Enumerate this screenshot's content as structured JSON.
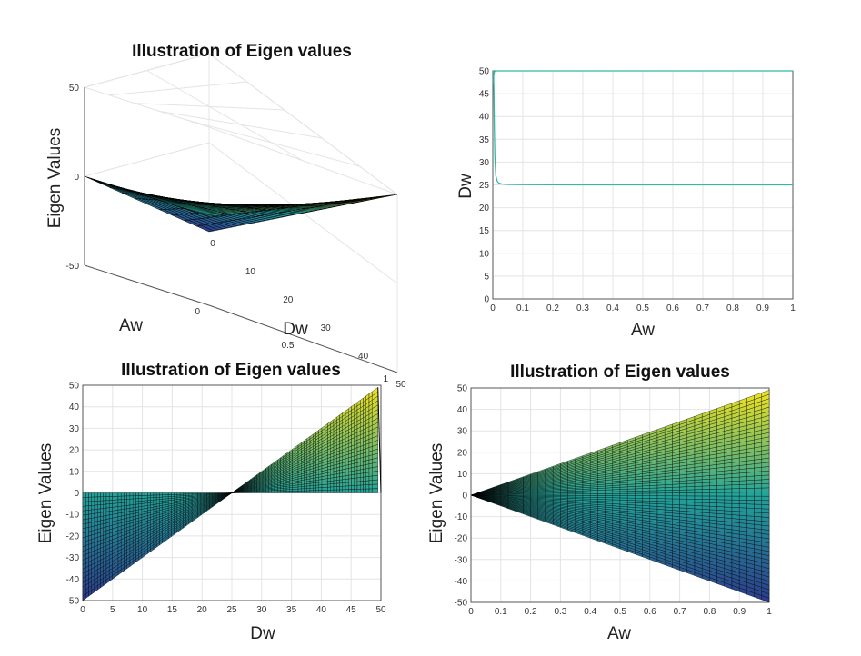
{
  "colors": {
    "surface_low": "#2b3a8c",
    "surface_mid": "#22a39a",
    "surface_high": "#f5e41e",
    "contour": "#34b8a6",
    "grid": "#e4e4e4",
    "axes": "#555555",
    "mesh": "#000000"
  },
  "chart_data": [
    {
      "type": "surface3d",
      "title": "Illustration of Eigen values",
      "xlabel": "Aw",
      "ylabel": "Dw",
      "zlabel": "Eigen Values",
      "xlim": [
        0,
        1
      ],
      "ylim": [
        0,
        50
      ],
      "zlim": [
        -50,
        50
      ],
      "x_ticks": [
        "0",
        "0.5",
        "1"
      ],
      "y_ticks": [
        "0",
        "10",
        "20",
        "30",
        "40",
        "50"
      ],
      "z_ticks": [
        "-50",
        "0",
        "50"
      ],
      "z_function": "Aw * (2*Dw - 50)",
      "grid": true
    },
    {
      "type": "line",
      "title": "",
      "xlabel": "Aw",
      "ylabel": "Dw",
      "xlim": [
        0,
        1
      ],
      "ylim": [
        0,
        50
      ],
      "x_ticks": [
        "0",
        "0.1",
        "0.2",
        "0.3",
        "0.4",
        "0.5",
        "0.6",
        "0.7",
        "0.8",
        "0.9",
        "1"
      ],
      "y_ticks": [
        "0",
        "5",
        "10",
        "15",
        "20",
        "25",
        "30",
        "35",
        "40",
        "45",
        "50"
      ],
      "series": [
        {
          "x": [
            0.002,
            0.003,
            0.004,
            0.005,
            0.007,
            0.01,
            0.015,
            0.02,
            0.03,
            0.05,
            0.1,
            0.2,
            0.4,
            0.6,
            0.8,
            1.0
          ],
          "y": [
            50,
            48,
            44,
            38,
            31,
            27,
            25.8,
            25.4,
            25.2,
            25.1,
            25.05,
            25.02,
            25.0,
            25.0,
            25.0,
            25.0
          ]
        },
        {
          "x": [
            0.002,
            0.003,
            0.005,
            0.01,
            0.1,
            0.5,
            1.0
          ],
          "y": [
            47,
            49,
            49.8,
            50,
            50,
            50,
            50
          ]
        }
      ],
      "grid": true
    },
    {
      "type": "surface-side",
      "title": "Illustration of Eigen values",
      "xlabel": "Dw",
      "ylabel": "Eigen Values",
      "xlim": [
        0,
        50
      ],
      "ylim": [
        -50,
        50
      ],
      "x_ticks": [
        "0",
        "5",
        "10",
        "15",
        "20",
        "25",
        "30",
        "35",
        "40",
        "45",
        "50"
      ],
      "y_ticks": [
        "-50",
        "-40",
        "-30",
        "-20",
        "-10",
        "0",
        "10",
        "20",
        "30",
        "40",
        "50"
      ],
      "z_function": "Aw * (2*Dw - 50)",
      "grid": true
    },
    {
      "type": "surface-side",
      "title": "Illustration of Eigen values",
      "xlabel": "Aw",
      "ylabel": "Eigen Values",
      "xlim": [
        0,
        1
      ],
      "ylim": [
        -50,
        50
      ],
      "x_ticks": [
        "0",
        "0.1",
        "0.2",
        "0.3",
        "0.4",
        "0.5",
        "0.6",
        "0.7",
        "0.8",
        "0.9",
        "1"
      ],
      "y_ticks": [
        "-50",
        "-40",
        "-30",
        "-20",
        "-10",
        "0",
        "10",
        "20",
        "30",
        "40",
        "50"
      ],
      "z_function": "Aw * (2*Dw - 50)",
      "grid": true
    }
  ]
}
